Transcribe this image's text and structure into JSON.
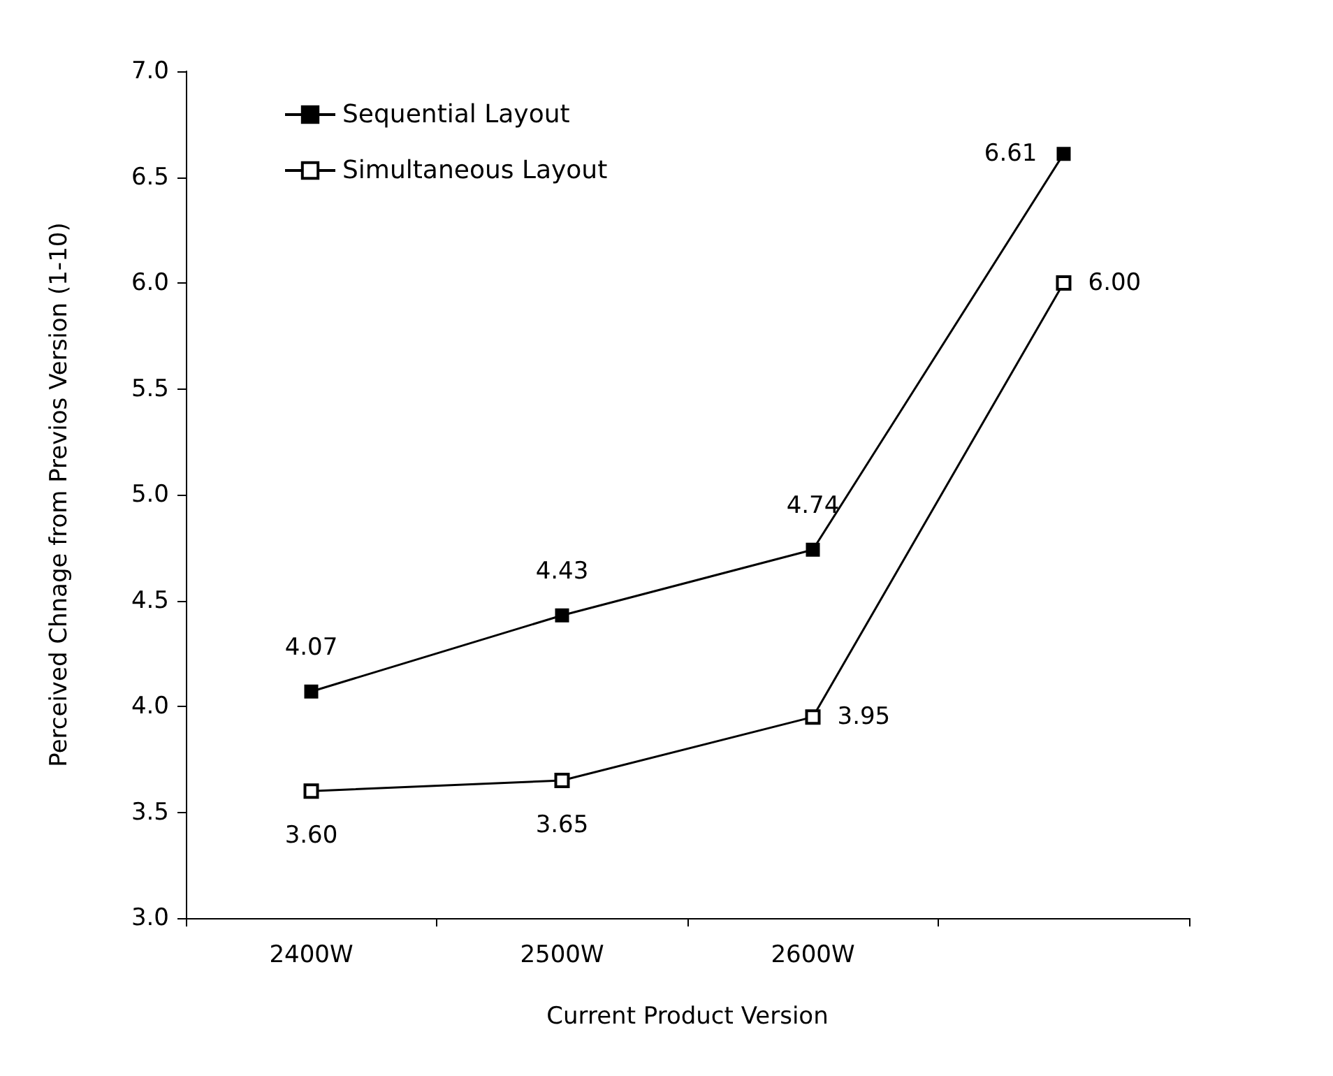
{
  "chart_data": {
    "type": "line",
    "xlabel": "Current Product Version",
    "ylabel": "Perceived Chnage from Previos Version (1-10)",
    "categories": [
      "2400W",
      "2500W",
      "2600W",
      null
    ],
    "series": [
      {
        "name": "Sequential Layout",
        "color": "#000000",
        "values": [
          4.07,
          4.43,
          4.74,
          6.61
        ],
        "value_labels": [
          "4.07",
          "4.43",
          "4.74",
          "6.61"
        ]
      },
      {
        "name": "Simultaneous Layout",
        "color": "#000000",
        "values": [
          3.6,
          3.65,
          3.95,
          6.0
        ],
        "value_labels": [
          "3.60",
          "3.65",
          "3.95",
          "6.00"
        ]
      }
    ],
    "ylim": [
      3,
      7
    ],
    "yticks": [
      {
        "value": 3,
        "label": "3.0"
      },
      {
        "value": 3.5,
        "label": "3.5"
      },
      {
        "value": 4,
        "label": "4.0"
      },
      {
        "value": 4.5,
        "label": "4.5"
      },
      {
        "value": 5,
        "label": "5.0"
      },
      {
        "value": 5.5,
        "label": "5.5"
      },
      {
        "value": 6,
        "label": "6.0"
      },
      {
        "value": 6.5,
        "label": "6.5"
      },
      {
        "value": 7,
        "label": "7.0"
      }
    ],
    "grid": false,
    "legend": "top left",
    "marker": "square",
    "line_style": "solid"
  }
}
